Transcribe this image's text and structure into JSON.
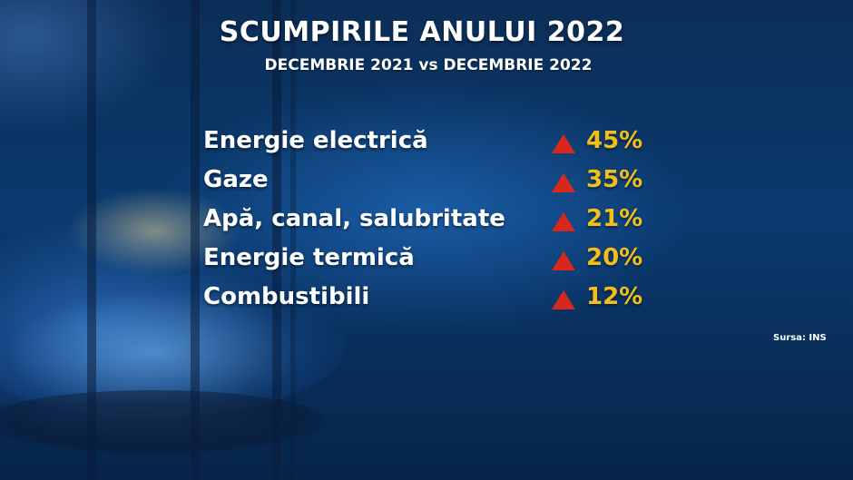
{
  "title": "SCUMPIRILE ANULUI 2022",
  "subtitle": "DECEMBRIE 2021 vs DECEMBRIE 2022",
  "items": [
    {
      "label": "Energie electrică",
      "value": "45%"
    },
    {
      "label": "Gaze",
      "value": "35%"
    },
    {
      "label": "Apă, canal, salubritate",
      "value": "21%"
    },
    {
      "label": "Energie termică",
      "value": "20%"
    },
    {
      "label": "Combustibili",
      "value": "12%"
    }
  ],
  "source": "Sursa: INS",
  "colors": {
    "increase_arrow": "#d8281d",
    "percentage_text": "#f2bf1a",
    "label_text": "#ffffff",
    "background": "#0a3a6f"
  },
  "icon": "up-triangle-icon"
}
